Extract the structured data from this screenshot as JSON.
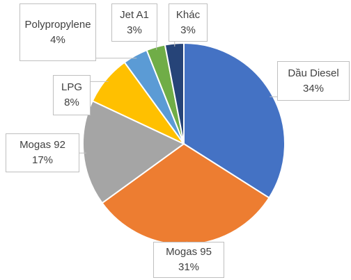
{
  "chart_data": {
    "type": "pie",
    "categories": [
      "Dầu Diesel",
      "Mogas 95",
      "Mogas 92",
      "LPG",
      "Polypropylene",
      "Jet A1",
      "Khác"
    ],
    "values": [
      34,
      31,
      17,
      8,
      4,
      3,
      3
    ],
    "value_labels": [
      "34%",
      "31%",
      "17%",
      "8%",
      "4%",
      "3%",
      "3%"
    ],
    "colors": [
      "#4472c4",
      "#ed7d31",
      "#a5a5a5",
      "#ffc000",
      "#5b9bd5",
      "#70ad47",
      "#264478"
    ]
  }
}
